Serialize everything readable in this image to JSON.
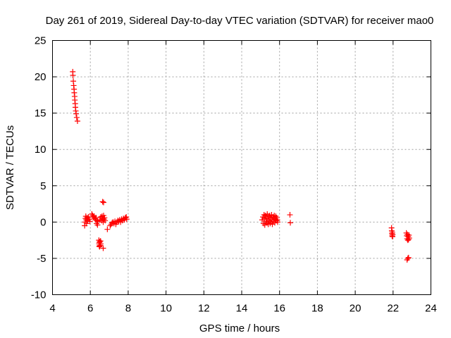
{
  "chart_data": {
    "type": "scatter",
    "title": "Day 261 of 2019, Sidereal Day-to-day VTEC variation (SDTVAR) for receiver mao0",
    "xlabel": "GPS time / hours",
    "ylabel": "SDTVAR / TECUs",
    "xlim": [
      4,
      24
    ],
    "ylim": [
      -10,
      25
    ],
    "xticks": [
      4,
      6,
      8,
      10,
      12,
      14,
      16,
      18,
      20,
      22,
      24
    ],
    "yticks": [
      -10,
      -5,
      0,
      5,
      10,
      15,
      20,
      25
    ],
    "xtick_labels": [
      "4",
      "6",
      "8",
      "10",
      "12",
      "14",
      "16",
      "18",
      "20",
      "22",
      "24"
    ],
    "ytick_labels": [
      "-10",
      "-5",
      "0",
      "5",
      "10",
      "15",
      "20",
      "25"
    ],
    "grid": true,
    "marker": "plus",
    "series": [
      {
        "name": "mao0",
        "color": "#ff0000",
        "points": [
          [
            5.07,
            20.7
          ],
          [
            5.08,
            20.2
          ],
          [
            5.1,
            19.4
          ],
          [
            5.12,
            18.8
          ],
          [
            5.14,
            18.3
          ],
          [
            5.15,
            17.8
          ],
          [
            5.17,
            17.3
          ],
          [
            5.18,
            16.8
          ],
          [
            5.2,
            16.3
          ],
          [
            5.21,
            15.8
          ],
          [
            5.23,
            15.3
          ],
          [
            5.25,
            14.9
          ],
          [
            5.28,
            14.4
          ],
          [
            5.32,
            13.9
          ],
          [
            5.7,
            -0.5
          ],
          [
            5.72,
            0.0
          ],
          [
            5.74,
            0.5
          ],
          [
            5.76,
            0.8
          ],
          [
            5.78,
            0.3
          ],
          [
            5.8,
            -0.2
          ],
          [
            5.83,
            0.6
          ],
          [
            5.86,
            0.2
          ],
          [
            5.9,
            0.7
          ],
          [
            5.95,
            0.4
          ],
          [
            5.98,
            0.1
          ],
          [
            6.08,
            1.1
          ],
          [
            6.12,
            0.9
          ],
          [
            6.16,
            0.7
          ],
          [
            6.2,
            0.8
          ],
          [
            6.23,
            0.5
          ],
          [
            6.27,
            0.3
          ],
          [
            6.3,
            0.6
          ],
          [
            6.33,
            -0.2
          ],
          [
            6.36,
            0.2
          ],
          [
            6.38,
            -0.4
          ],
          [
            6.4,
            0.1
          ],
          [
            6.45,
            -2.5
          ],
          [
            6.46,
            -3.0
          ],
          [
            6.47,
            -3.3
          ],
          [
            6.48,
            -2.8
          ],
          [
            6.49,
            -3.4
          ],
          [
            6.5,
            -2.7
          ],
          [
            6.52,
            -3.2
          ],
          [
            6.54,
            -2.6
          ],
          [
            6.55,
            -3.0
          ],
          [
            6.5,
            0.3
          ],
          [
            6.55,
            0.7
          ],
          [
            6.6,
            0.2
          ],
          [
            6.62,
            0.8
          ],
          [
            6.65,
            0.5
          ],
          [
            6.68,
            0.0
          ],
          [
            6.7,
            0.9
          ],
          [
            6.72,
            0.4
          ],
          [
            6.75,
            0.6
          ],
          [
            6.78,
            0.2
          ],
          [
            6.65,
            2.8
          ],
          [
            6.7,
            2.7
          ],
          [
            6.68,
            -3.6
          ],
          [
            6.9,
            -1.0
          ],
          [
            7.05,
            -0.5
          ],
          [
            7.1,
            -0.3
          ],
          [
            7.15,
            -0.1
          ],
          [
            7.2,
            0.0
          ],
          [
            7.25,
            -0.2
          ],
          [
            7.3,
            0.1
          ],
          [
            7.35,
            -0.3
          ],
          [
            7.4,
            0.0
          ],
          [
            7.45,
            0.2
          ],
          [
            7.5,
            0.1
          ],
          [
            7.55,
            0.3
          ],
          [
            7.6,
            0.0
          ],
          [
            7.65,
            0.4
          ],
          [
            7.7,
            0.2
          ],
          [
            7.75,
            0.5
          ],
          [
            7.8,
            0.3
          ],
          [
            7.85,
            0.6
          ],
          [
            7.9,
            0.7
          ],
          [
            7.92,
            0.4
          ],
          [
            15.08,
            0.3
          ],
          [
            15.12,
            0.7
          ],
          [
            15.15,
            -0.2
          ],
          [
            15.18,
            1.0
          ],
          [
            15.2,
            0.5
          ],
          [
            15.22,
            -0.4
          ],
          [
            15.25,
            0.9
          ],
          [
            15.28,
            0.1
          ],
          [
            15.3,
            0.6
          ],
          [
            15.33,
            -0.1
          ],
          [
            15.35,
            1.1
          ],
          [
            15.38,
            0.4
          ],
          [
            15.4,
            -0.3
          ],
          [
            15.42,
            0.8
          ],
          [
            15.45,
            0.2
          ],
          [
            15.48,
            0.9
          ],
          [
            15.5,
            -0.2
          ],
          [
            15.52,
            0.6
          ],
          [
            15.55,
            0.0
          ],
          [
            15.58,
            1.0
          ],
          [
            15.6,
            0.3
          ],
          [
            15.62,
            -0.3
          ],
          [
            15.65,
            0.7
          ],
          [
            15.68,
            0.1
          ],
          [
            15.7,
            0.5
          ],
          [
            15.72,
            0.9
          ],
          [
            15.75,
            -0.1
          ],
          [
            15.78,
            0.4
          ],
          [
            15.8,
            0.8
          ],
          [
            15.82,
            0.2
          ],
          [
            15.85,
            0.6
          ],
          [
            15.88,
            0.3
          ],
          [
            15.9,
            0.0
          ],
          [
            16.55,
            1.0
          ],
          [
            16.57,
            -0.1
          ],
          [
            21.92,
            -0.8
          ],
          [
            21.93,
            -1.2
          ],
          [
            21.94,
            -1.6
          ],
          [
            21.95,
            -1.9
          ],
          [
            21.96,
            -1.4
          ],
          [
            21.97,
            -2.0
          ],
          [
            21.98,
            -1.7
          ],
          [
            22.7,
            -1.5
          ],
          [
            22.72,
            -1.9
          ],
          [
            22.74,
            -2.3
          ],
          [
            22.76,
            -1.7
          ],
          [
            22.78,
            -2.5
          ],
          [
            22.8,
            -2.0
          ],
          [
            22.82,
            -2.4
          ],
          [
            22.84,
            -1.8
          ],
          [
            22.86,
            -2.2
          ],
          [
            22.74,
            -5.2
          ],
          [
            22.78,
            -5.0
          ],
          [
            22.82,
            -4.9
          ]
        ]
      }
    ]
  }
}
